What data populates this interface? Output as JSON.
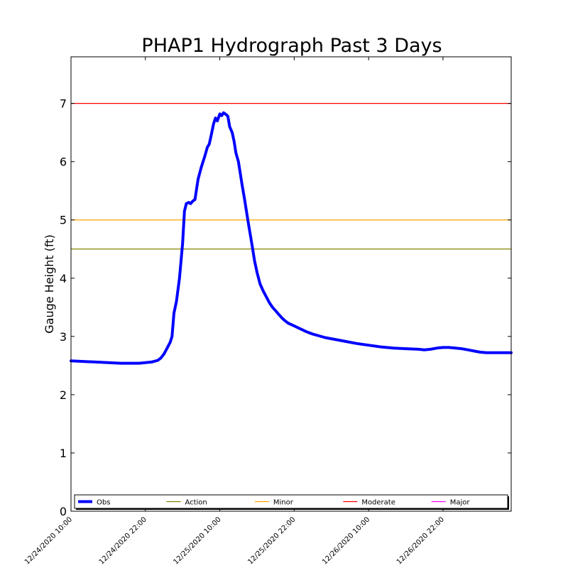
{
  "chart_data": {
    "type": "line",
    "title": "PHAP1 Hydrograph Past 3 Days",
    "xlabel": "",
    "ylabel": "Gauge Height (ft)",
    "ylim": [
      0,
      7.8
    ],
    "xlim": [
      0,
      71
    ],
    "y_ticks": [
      0,
      1,
      2,
      3,
      4,
      5,
      6,
      7
    ],
    "x_ticks": [
      {
        "x": 0,
        "label": "12/24/2020 10:00"
      },
      {
        "x": 12,
        "label": "12/24/2020 22:00"
      },
      {
        "x": 24,
        "label": "12/25/2020 10:00"
      },
      {
        "x": 36,
        "label": "12/25/2020 22:00"
      },
      {
        "x": 48,
        "label": "12/26/2020 10:00"
      },
      {
        "x": 60,
        "label": "12/26/2020 22:00"
      }
    ],
    "grid": false,
    "legend_position": "bottom",
    "series": [
      {
        "name": "Obs",
        "color": "#0000ff",
        "x": [
          0,
          2,
          4,
          6,
          8,
          10,
          11,
          12,
          13,
          14,
          14.5,
          15,
          15.5,
          16,
          16.3,
          16.6,
          17,
          17.5,
          18,
          18.3,
          18.6,
          19,
          19.3,
          19.6,
          20,
          20.5,
          21,
          21.3,
          21.6,
          22,
          22.3,
          22.6,
          23,
          23.3,
          23.6,
          24,
          24.3,
          24.6,
          25,
          25.3,
          25.6,
          26,
          26.3,
          26.6,
          27,
          27.3,
          27.6,
          28,
          28.3,
          28.6,
          29,
          29.3,
          29.6,
          30,
          30.5,
          31,
          31.5,
          32,
          32.5,
          33,
          33.5,
          34,
          34.5,
          35,
          36,
          37,
          38,
          39,
          40,
          41,
          42,
          44,
          46,
          48,
          50,
          52,
          54,
          56,
          57,
          58,
          59,
          60,
          61,
          62,
          63,
          64,
          65,
          66,
          67,
          68,
          69,
          70,
          71
        ],
        "y": [
          2.58,
          2.57,
          2.56,
          2.55,
          2.54,
          2.54,
          2.54,
          2.55,
          2.56,
          2.59,
          2.63,
          2.7,
          2.8,
          2.9,
          3.0,
          3.4,
          3.6,
          4.0,
          4.6,
          5.15,
          5.28,
          5.3,
          5.28,
          5.32,
          5.35,
          5.7,
          5.9,
          6.0,
          6.1,
          6.25,
          6.3,
          6.45,
          6.65,
          6.75,
          6.7,
          6.82,
          6.79,
          6.84,
          6.81,
          6.78,
          6.6,
          6.5,
          6.35,
          6.15,
          6.0,
          5.8,
          5.6,
          5.35,
          5.15,
          4.95,
          4.7,
          4.5,
          4.3,
          4.1,
          3.9,
          3.78,
          3.68,
          3.58,
          3.5,
          3.44,
          3.38,
          3.32,
          3.27,
          3.23,
          3.18,
          3.13,
          3.08,
          3.04,
          3.01,
          2.98,
          2.96,
          2.92,
          2.88,
          2.85,
          2.82,
          2.8,
          2.79,
          2.78,
          2.77,
          2.78,
          2.8,
          2.81,
          2.81,
          2.8,
          2.79,
          2.77,
          2.75,
          2.73,
          2.72,
          2.72,
          2.72,
          2.72,
          2.72
        ]
      }
    ],
    "thresholds": [
      {
        "name": "Action",
        "value": 4.5,
        "color": "#808000"
      },
      {
        "name": "Minor",
        "value": 5.0,
        "color": "#ffa500"
      },
      {
        "name": "Moderate",
        "value": 7.0,
        "color": "#ff0000"
      },
      {
        "name": "Major",
        "value": null,
        "color": "#ff00ff"
      }
    ],
    "legend": [
      "Obs",
      "Action",
      "Minor",
      "Moderate",
      "Major"
    ]
  }
}
